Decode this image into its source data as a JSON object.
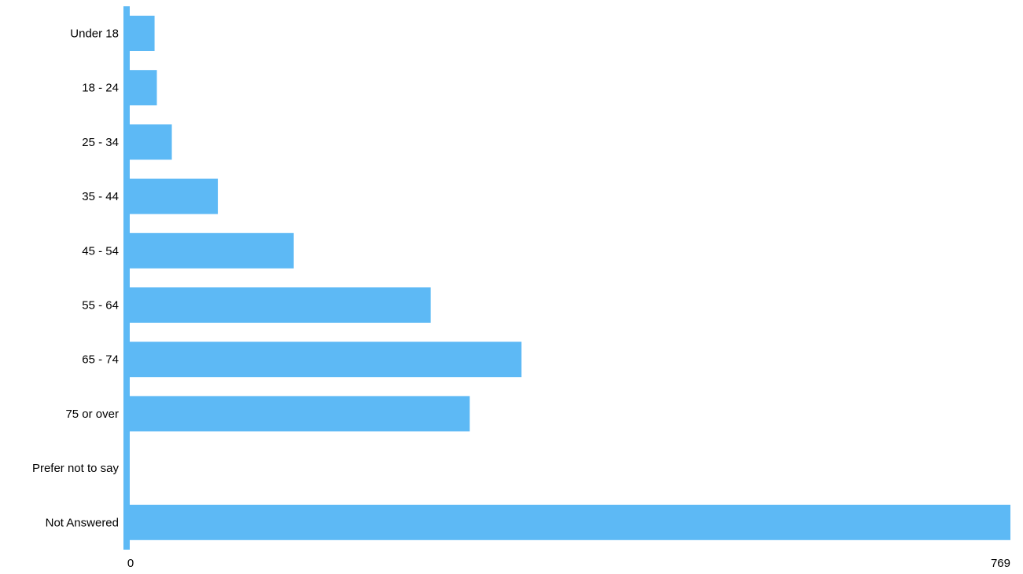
{
  "colors": {
    "bar": "#5db9f5",
    "axis": "#5db9f5",
    "background": "#ffffff",
    "text": "#000000"
  },
  "chart_data": {
    "type": "bar",
    "orientation": "horizontal",
    "categories": [
      "Under 18",
      "18 - 24",
      "25 - 34",
      "35 - 44",
      "45 - 54",
      "55 - 64",
      "65 - 74",
      "75 or over",
      "Prefer not to say",
      "Not Answered"
    ],
    "values": [
      25,
      27,
      40,
      80,
      146,
      265,
      344,
      299,
      0,
      769
    ],
    "xlim": [
      0,
      769
    ],
    "x_ticks": [
      "0",
      "769"
    ],
    "grid": false,
    "legend": false
  }
}
